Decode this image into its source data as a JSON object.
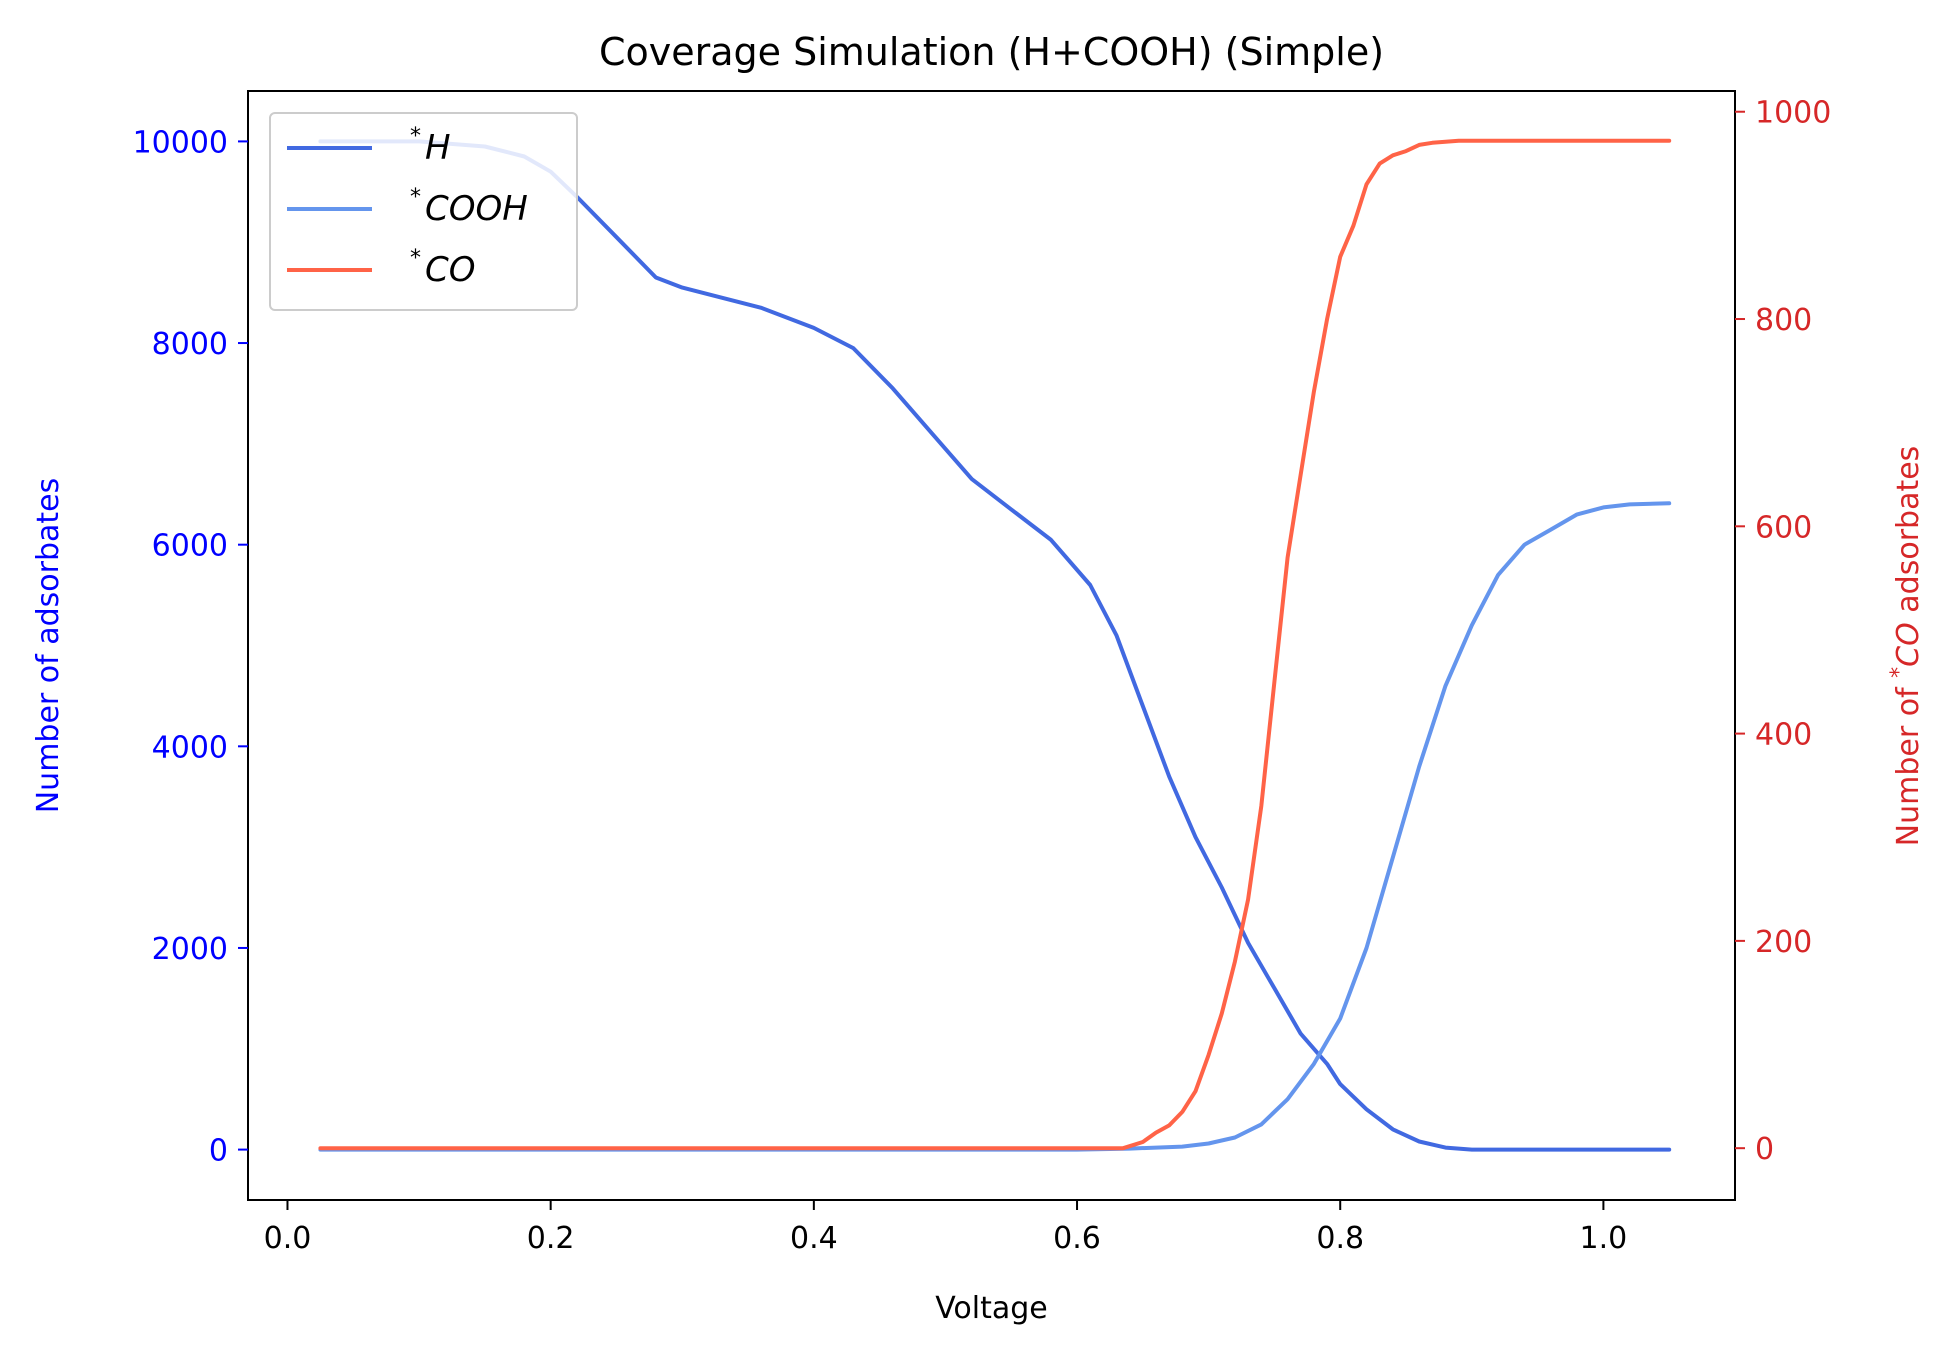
{
  "chart_data": {
    "type": "line",
    "title": "Coverage Simulation (H+COOH) (Simple)",
    "xlabel": "Voltage",
    "ylabel_left": "Number of adsorbates",
    "ylabel_right_prefix": "Number of ",
    "ylabel_right_sup": "*",
    "ylabel_right_species": "CO",
    "ylabel_right_suffix": " adsorbates",
    "xlim": [
      -0.03,
      1.1
    ],
    "ylim_left": [
      -500,
      10500
    ],
    "ylim_right": [
      -50,
      1020
    ],
    "x_ticks": [
      0.0,
      0.2,
      0.4,
      0.6,
      0.8,
      1.0
    ],
    "x_tick_labels": [
      "0.0",
      "0.2",
      "0.4",
      "0.6",
      "0.8",
      "1.0"
    ],
    "y_left_ticks": [
      0,
      2000,
      4000,
      6000,
      8000,
      10000
    ],
    "y_left_tick_labels": [
      "0",
      "2000",
      "4000",
      "6000",
      "8000",
      "10000"
    ],
    "y_right_ticks": [
      0,
      200,
      400,
      600,
      800,
      1000
    ],
    "y_right_tick_labels": [
      "0",
      "200",
      "400",
      "600",
      "800",
      "1000"
    ],
    "left_axis_color": "#0000ff",
    "right_axis_color": "#d62728",
    "legend_position": "upper-left",
    "grid": false,
    "series": [
      {
        "name": "H",
        "legend_sup": "*",
        "axis": "left",
        "color": "#4169e1",
        "x": [
          0.025,
          0.05,
          0.1,
          0.15,
          0.18,
          0.2,
          0.22,
          0.25,
          0.28,
          0.3,
          0.33,
          0.36,
          0.4,
          0.43,
          0.46,
          0.49,
          0.52,
          0.55,
          0.58,
          0.61,
          0.63,
          0.65,
          0.67,
          0.69,
          0.71,
          0.73,
          0.75,
          0.77,
          0.79,
          0.8,
          0.82,
          0.84,
          0.86,
          0.88,
          0.9,
          0.93,
          0.96,
          1.0,
          1.05
        ],
        "y": [
          10000,
          10000,
          10000,
          9950,
          9850,
          9700,
          9450,
          9050,
          8650,
          8550,
          8450,
          8350,
          8150,
          7950,
          7550,
          7100,
          6650,
          6350,
          6050,
          5600,
          5100,
          4400,
          3700,
          3100,
          2600,
          2050,
          1600,
          1150,
          850,
          650,
          400,
          200,
          80,
          20,
          0,
          0,
          0,
          0,
          0
        ]
      },
      {
        "name": "COOH",
        "legend_sup": "*",
        "axis": "left",
        "color": "#6495ed",
        "x": [
          0.025,
          0.6,
          0.64,
          0.68,
          0.7,
          0.72,
          0.74,
          0.76,
          0.78,
          0.8,
          0.82,
          0.84,
          0.86,
          0.88,
          0.9,
          0.92,
          0.94,
          0.96,
          0.98,
          1.0,
          1.02,
          1.05
        ],
        "y": [
          0,
          0,
          10,
          30,
          60,
          120,
          250,
          500,
          850,
          1300,
          2000,
          2900,
          3800,
          4600,
          5200,
          5700,
          6000,
          6150,
          6300,
          6370,
          6400,
          6410
        ]
      },
      {
        "name": "CO",
        "legend_sup": "*",
        "axis": "right",
        "color": "#ff6347",
        "x": [
          0.025,
          0.5,
          0.635,
          0.65,
          0.66,
          0.67,
          0.68,
          0.69,
          0.7,
          0.71,
          0.72,
          0.73,
          0.74,
          0.75,
          0.76,
          0.77,
          0.78,
          0.79,
          0.8,
          0.81,
          0.82,
          0.83,
          0.84,
          0.85,
          0.86,
          0.87,
          0.88,
          0.89,
          0.9,
          0.95,
          1.0,
          1.05
        ],
        "y": [
          0,
          0,
          0,
          6,
          15,
          22,
          35,
          55,
          90,
          130,
          180,
          240,
          330,
          450,
          570,
          650,
          730,
          800,
          860,
          890,
          930,
          950,
          958,
          962,
          968,
          970,
          971,
          972,
          972,
          972,
          972,
          972
        ]
      }
    ]
  }
}
